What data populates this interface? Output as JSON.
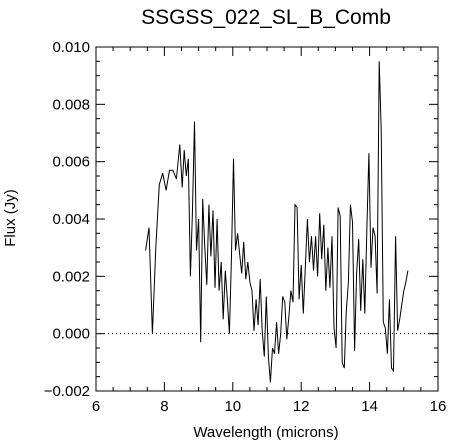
{
  "chart_data": {
    "type": "line",
    "title": "SSGSS_022_SL_B_Comb",
    "xlabel": "Wavelength (microns)",
    "ylabel": "Flux (Jy)",
    "xlim": [
      6,
      16
    ],
    "ylim": [
      -0.002,
      0.01
    ],
    "xticks": [
      6,
      8,
      10,
      12,
      14,
      16
    ],
    "xtick_labels": [
      "6",
      "8",
      "10",
      "12",
      "14",
      "16"
    ],
    "yticks": [
      -0.002,
      0.0,
      0.002,
      0.004,
      0.006,
      0.008,
      0.01
    ],
    "ytick_labels": [
      "−0.002",
      "0.000",
      "0.002",
      "0.004",
      "0.006",
      "0.008",
      "0.010"
    ],
    "grid": false,
    "reference_line": {
      "y": 0.0,
      "style": "dotted"
    },
    "line_color": "#000000",
    "series": [
      {
        "x": [
          7.45,
          7.55,
          7.65,
          7.75,
          7.85,
          7.95,
          8.05,
          8.15,
          8.25,
          8.35,
          8.45,
          8.52,
          8.58,
          8.64,
          8.7,
          8.76,
          8.82,
          8.88,
          8.94,
          9.0,
          9.06,
          9.12,
          9.18,
          9.24,
          9.3,
          9.36,
          9.42,
          9.48,
          9.54,
          9.6,
          9.66,
          9.72,
          9.78,
          9.84,
          9.9,
          9.96,
          10.02,
          10.08,
          10.14,
          10.2,
          10.26,
          10.32,
          10.38,
          10.44,
          10.5,
          10.56,
          10.62,
          10.68,
          10.74,
          10.8,
          10.86,
          10.92,
          10.98,
          11.04,
          11.1,
          11.16,
          11.22,
          11.28,
          11.34,
          11.4,
          11.46,
          11.52,
          11.58,
          11.64,
          11.7,
          11.76,
          11.82,
          11.88,
          11.94,
          12.0,
          12.06,
          12.12,
          12.18,
          12.24,
          12.3,
          12.36,
          12.42,
          12.48,
          12.54,
          12.6,
          12.66,
          12.72,
          12.78,
          12.84,
          12.9,
          12.96,
          13.02,
          13.08,
          13.14,
          13.2,
          13.26,
          13.32,
          13.38,
          13.44,
          13.5,
          13.56,
          13.62,
          13.68,
          13.74,
          13.8,
          13.86,
          13.92,
          13.98,
          14.04,
          14.1,
          14.16,
          14.22,
          14.28,
          14.34,
          14.4,
          14.46,
          14.52,
          14.58,
          14.64,
          14.7,
          14.76,
          14.82,
          14.88,
          14.94,
          15.0,
          15.06,
          15.12
        ],
        "values": [
          0.0029,
          0.0037,
          0.0,
          0.003,
          0.0052,
          0.0056,
          0.005,
          0.0057,
          0.0057,
          0.0054,
          0.0066,
          0.0051,
          0.0064,
          0.0055,
          0.0061,
          0.002,
          0.0042,
          0.0074,
          0.0029,
          0.004,
          -0.0003,
          0.0047,
          0.003,
          0.0017,
          0.0045,
          0.0027,
          0.0043,
          0.0016,
          0.004,
          0.0015,
          0.0025,
          0.0005,
          0.0022,
          0.0012,
          0.0,
          0.0026,
          0.0061,
          0.0029,
          0.0035,
          0.0028,
          0.0021,
          0.0032,
          0.0019,
          0.0025,
          0.0018,
          0.0015,
          0.0001,
          0.0012,
          0.0003,
          0.0019,
          0.0001,
          -0.0008,
          0.0013,
          -0.0008,
          -0.0017,
          -0.0005,
          -0.0007,
          0.0004,
          -0.0007,
          0.0,
          0.0013,
          0.0011,
          -0.0002,
          0.0006,
          0.0015,
          0.0011,
          0.0045,
          0.0044,
          0.0012,
          0.0024,
          0.0007,
          0.0023,
          0.004,
          0.0025,
          0.0034,
          0.0022,
          0.0034,
          0.002,
          0.0042,
          0.0026,
          0.0038,
          0.0015,
          0.003,
          0.0016,
          0.0034,
          0.0002,
          -0.0005,
          0.0044,
          0.0041,
          -0.001,
          -0.0012,
          0.0008,
          0.0018,
          0.0045,
          0.0039,
          -0.0006,
          0.0021,
          0.0033,
          0.0008,
          0.0026,
          0.0007,
          0.0037,
          0.0063,
          0.0023,
          0.0037,
          0.0034,
          0.0014,
          0.0095,
          0.0071,
          0.0004,
          0.0002,
          -0.0007,
          0.0012,
          -0.0012,
          -0.0013,
          0.0034,
          0.0001,
          0.0005,
          0.001,
          0.0015,
          0.0018,
          0.0022
        ]
      }
    ]
  }
}
